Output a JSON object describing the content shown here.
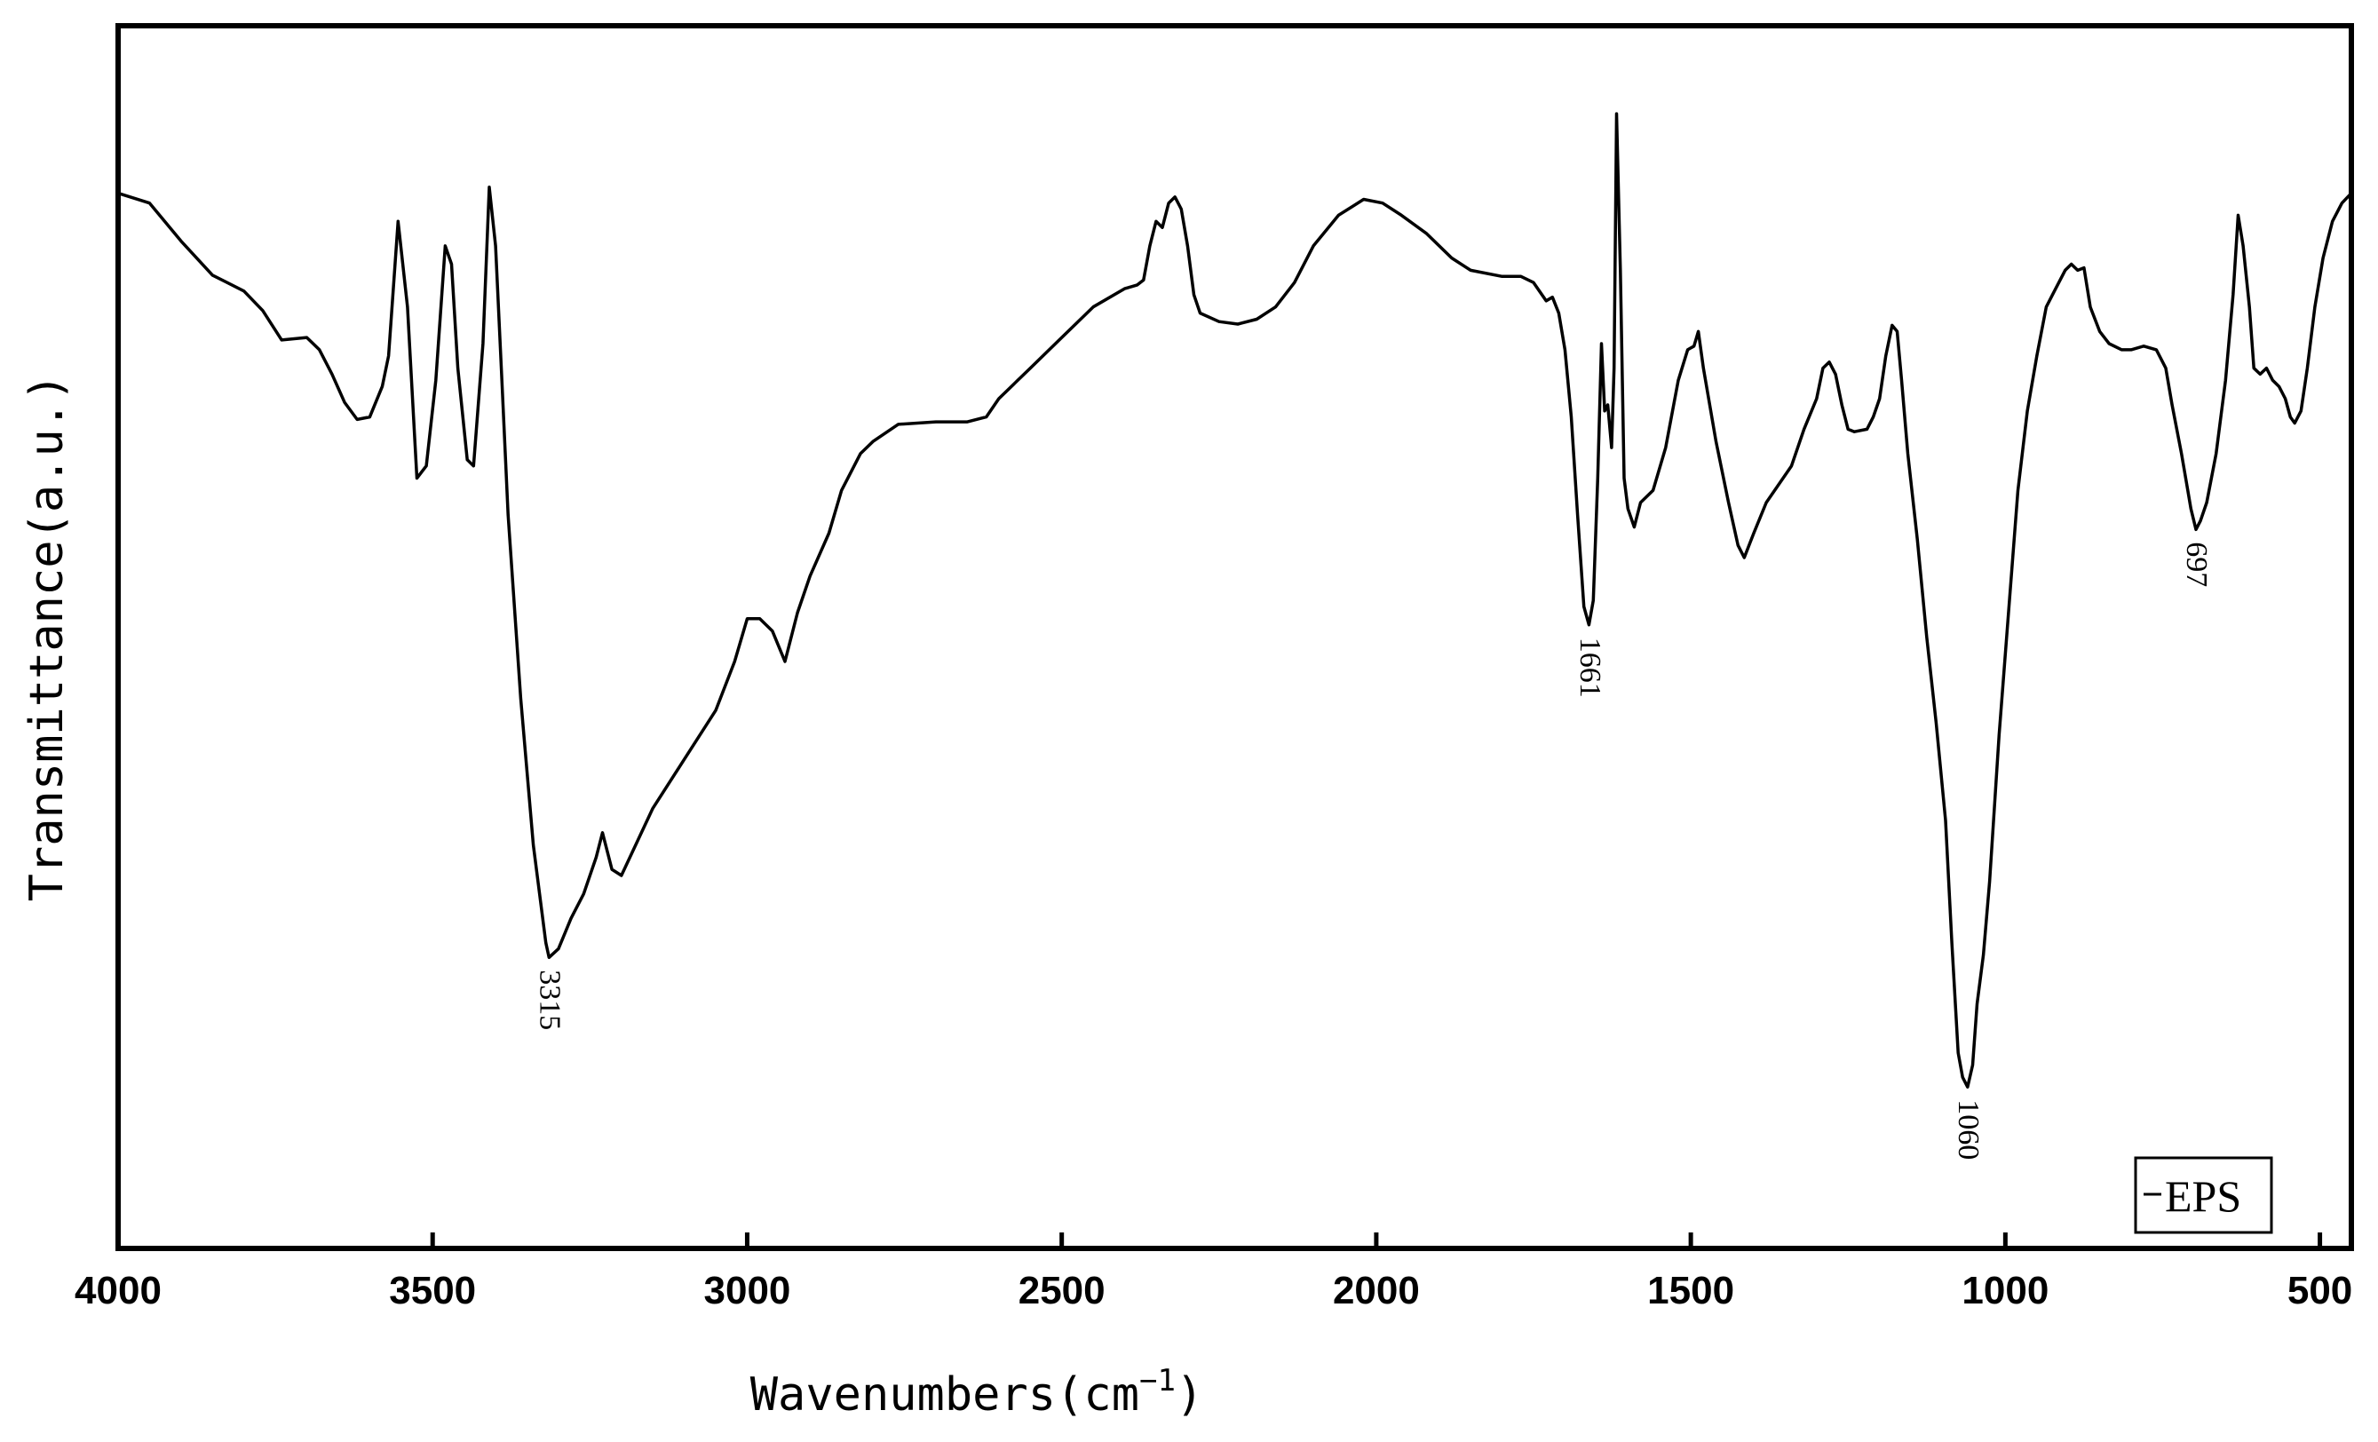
{
  "chart_data": {
    "type": "line",
    "xlabel": "Wavenumbers(cm",
    "xlabel_sup": "−1",
    "xlabel_close": ")",
    "ylabel": "Transmittance(a.u.)",
    "xlim": [
      4000,
      450
    ],
    "x_reversed": true,
    "ylim": [
      0,
      100
    ],
    "x_ticks": [
      4000,
      3500,
      3000,
      2500,
      2000,
      1500,
      1000,
      500
    ],
    "x_tick_labels": [
      "4000",
      "3500",
      "3000",
      "2500",
      "2000",
      "1500",
      "1000",
      "500"
    ],
    "y_ticks_shown": false,
    "grid": false,
    "legend_position": "bottom-right",
    "series": [
      {
        "name": "EPS",
        "color": "#000000",
        "points": [
          [
            4000,
            86.3
          ],
          [
            3950,
            85.5
          ],
          [
            3900,
            82.4
          ],
          [
            3850,
            79.6
          ],
          [
            3800,
            78.3
          ],
          [
            3770,
            76.7
          ],
          [
            3740,
            74.3
          ],
          [
            3700,
            74.5
          ],
          [
            3680,
            73.5
          ],
          [
            3660,
            71.5
          ],
          [
            3640,
            69.2
          ],
          [
            3620,
            67.8
          ],
          [
            3600,
            68.0
          ],
          [
            3580,
            70.5
          ],
          [
            3570,
            73.0
          ],
          [
            3555,
            84.0
          ],
          [
            3540,
            77.0
          ],
          [
            3525,
            63.0
          ],
          [
            3510,
            64.0
          ],
          [
            3495,
            71.0
          ],
          [
            3480,
            82.0
          ],
          [
            3470,
            80.5
          ],
          [
            3460,
            72.0
          ],
          [
            3445,
            64.5
          ],
          [
            3435,
            64.0
          ],
          [
            3420,
            74.0
          ],
          [
            3410,
            86.8
          ],
          [
            3400,
            82.0
          ],
          [
            3390,
            71.0
          ],
          [
            3380,
            60.0
          ],
          [
            3360,
            45.0
          ],
          [
            3340,
            33.0
          ],
          [
            3320,
            25.0
          ],
          [
            3315,
            23.8
          ],
          [
            3300,
            24.5
          ],
          [
            3280,
            27.0
          ],
          [
            3260,
            29.0
          ],
          [
            3240,
            32.0
          ],
          [
            3230,
            34.0
          ],
          [
            3215,
            31.0
          ],
          [
            3200,
            30.5
          ],
          [
            3150,
            36.0
          ],
          [
            3100,
            40.0
          ],
          [
            3050,
            44.0
          ],
          [
            3020,
            48.0
          ],
          [
            3000,
            51.5
          ],
          [
            2980,
            51.5
          ],
          [
            2960,
            50.5
          ],
          [
            2940,
            48.0
          ],
          [
            2920,
            52.0
          ],
          [
            2900,
            55.0
          ],
          [
            2870,
            58.5
          ],
          [
            2850,
            62.0
          ],
          [
            2820,
            65.0
          ],
          [
            2800,
            66.0
          ],
          [
            2760,
            67.4
          ],
          [
            2700,
            67.6
          ],
          [
            2650,
            67.6
          ],
          [
            2620,
            68.0
          ],
          [
            2600,
            69.5
          ],
          [
            2550,
            72.0
          ],
          [
            2500,
            74.5
          ],
          [
            2450,
            77.0
          ],
          [
            2400,
            78.5
          ],
          [
            2380,
            78.8
          ],
          [
            2370,
            79.2
          ],
          [
            2360,
            82.0
          ],
          [
            2350,
            84.0
          ],
          [
            2340,
            83.5
          ],
          [
            2330,
            85.5
          ],
          [
            2320,
            86.0
          ],
          [
            2310,
            85.0
          ],
          [
            2300,
            82.0
          ],
          [
            2290,
            78.0
          ],
          [
            2280,
            76.5
          ],
          [
            2250,
            75.8
          ],
          [
            2220,
            75.6
          ],
          [
            2190,
            76.0
          ],
          [
            2160,
            77.0
          ],
          [
            2130,
            79.0
          ],
          [
            2100,
            82.0
          ],
          [
            2060,
            84.5
          ],
          [
            2020,
            85.8
          ],
          [
            1990,
            85.5
          ],
          [
            1960,
            84.5
          ],
          [
            1920,
            83.0
          ],
          [
            1880,
            81.0
          ],
          [
            1850,
            80.0
          ],
          [
            1800,
            79.5
          ],
          [
            1770,
            79.5
          ],
          [
            1750,
            79.0
          ],
          [
            1730,
            77.5
          ],
          [
            1720,
            77.8
          ],
          [
            1710,
            76.5
          ],
          [
            1700,
            73.5
          ],
          [
            1690,
            68.0
          ],
          [
            1680,
            60.0
          ],
          [
            1670,
            52.5
          ],
          [
            1662,
            51.0
          ],
          [
            1655,
            53.0
          ],
          [
            1648,
            63.0
          ],
          [
            1642,
            74.0
          ],
          [
            1637,
            68.5
          ],
          [
            1632,
            69.0
          ],
          [
            1626,
            65.5
          ],
          [
            1622,
            72.0
          ],
          [
            1618,
            92.8
          ],
          [
            1612,
            80.0
          ],
          [
            1606,
            63.0
          ],
          [
            1600,
            60.5
          ],
          [
            1590,
            59.0
          ],
          [
            1580,
            61.0
          ],
          [
            1560,
            62.0
          ],
          [
            1540,
            65.5
          ],
          [
            1520,
            71.0
          ],
          [
            1505,
            73.5
          ],
          [
            1495,
            73.8
          ],
          [
            1488,
            75.0
          ],
          [
            1480,
            72.0
          ],
          [
            1460,
            66.0
          ],
          [
            1440,
            61.0
          ],
          [
            1425,
            57.5
          ],
          [
            1415,
            56.5
          ],
          [
            1400,
            58.5
          ],
          [
            1380,
            61.0
          ],
          [
            1360,
            62.5
          ],
          [
            1340,
            64.0
          ],
          [
            1320,
            67.0
          ],
          [
            1300,
            69.5
          ],
          [
            1290,
            72.0
          ],
          [
            1280,
            72.5
          ],
          [
            1270,
            71.5
          ],
          [
            1260,
            69.0
          ],
          [
            1250,
            67.0
          ],
          [
            1240,
            66.8
          ],
          [
            1220,
            67.0
          ],
          [
            1210,
            68.0
          ],
          [
            1200,
            69.5
          ],
          [
            1190,
            73.0
          ],
          [
            1180,
            75.5
          ],
          [
            1172,
            75.0
          ],
          [
            1165,
            71.0
          ],
          [
            1155,
            65.0
          ],
          [
            1140,
            58.0
          ],
          [
            1125,
            50.0
          ],
          [
            1110,
            43.0
          ],
          [
            1095,
            35.0
          ],
          [
            1085,
            25.0
          ],
          [
            1075,
            16.0
          ],
          [
            1068,
            14.0
          ],
          [
            1060,
            13.2
          ],
          [
            1052,
            15.0
          ],
          [
            1045,
            20.0
          ],
          [
            1035,
            24.0
          ],
          [
            1025,
            30.0
          ],
          [
            1010,
            42.0
          ],
          [
            995,
            52.0
          ],
          [
            980,
            62.0
          ],
          [
            965,
            68.5
          ],
          [
            950,
            73.0
          ],
          [
            935,
            77.0
          ],
          [
            920,
            78.5
          ],
          [
            905,
            80.0
          ],
          [
            895,
            80.5
          ],
          [
            885,
            80.0
          ],
          [
            875,
            80.2
          ],
          [
            865,
            77.0
          ],
          [
            850,
            75.0
          ],
          [
            835,
            74.0
          ],
          [
            815,
            73.5
          ],
          [
            800,
            73.5
          ],
          [
            780,
            73.8
          ],
          [
            760,
            73.5
          ],
          [
            745,
            72.0
          ],
          [
            735,
            69.0
          ],
          [
            720,
            65.0
          ],
          [
            710,
            62.0
          ],
          [
            705,
            60.5
          ],
          [
            697,
            58.8
          ],
          [
            690,
            59.5
          ],
          [
            680,
            61.0
          ],
          [
            665,
            65.0
          ],
          [
            650,
            71.0
          ],
          [
            638,
            78.0
          ],
          [
            630,
            84.5
          ],
          [
            622,
            82.0
          ],
          [
            612,
            77.0
          ],
          [
            605,
            72.0
          ],
          [
            595,
            71.5
          ],
          [
            585,
            72.0
          ],
          [
            575,
            71.0
          ],
          [
            565,
            70.5
          ],
          [
            555,
            69.5
          ],
          [
            547,
            68.0
          ],
          [
            540,
            67.5
          ],
          [
            530,
            68.5
          ],
          [
            520,
            72.0
          ],
          [
            508,
            77.0
          ],
          [
            495,
            81.0
          ],
          [
            480,
            84.0
          ],
          [
            465,
            85.5
          ],
          [
            450,
            86.3
          ]
        ]
      }
    ],
    "annotations": [
      {
        "x": 3315,
        "y": 23.8,
        "text": "3315",
        "rotation": 90
      },
      {
        "x": 1661,
        "y": 51.0,
        "text": "1661",
        "rotation": 90
      },
      {
        "x": 1060,
        "y": 13.2,
        "text": "1060",
        "rotation": 90
      },
      {
        "x": 697,
        "y": 58.8,
        "text": "697",
        "rotation": 90
      }
    ],
    "legend": {
      "label": "EPS"
    }
  }
}
